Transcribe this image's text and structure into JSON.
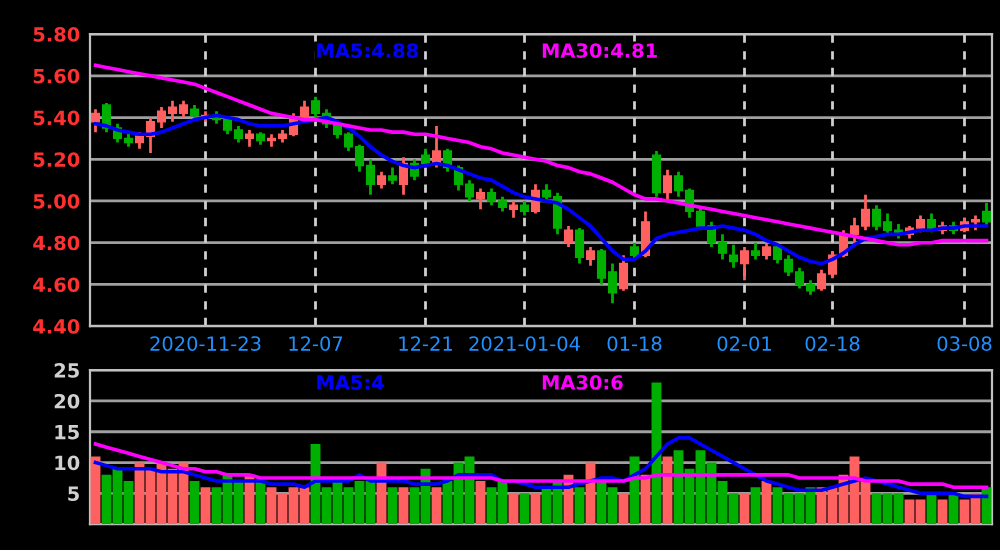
{
  "chart_data": [
    {
      "type": "candlestick",
      "categories": [
        null,
        null,
        null,
        null,
        null,
        null,
        null,
        null,
        null,
        null,
        "2020-11-23",
        null,
        null,
        null,
        null,
        null,
        null,
        null,
        null,
        null,
        "12-07",
        null,
        null,
        null,
        null,
        null,
        null,
        null,
        null,
        null,
        "12-21",
        null,
        null,
        null,
        null,
        null,
        null,
        null,
        null,
        "2021-01-04",
        null,
        null,
        null,
        null,
        null,
        null,
        null,
        null,
        null,
        "01-18",
        null,
        null,
        null,
        null,
        null,
        null,
        null,
        null,
        null,
        "02-01",
        null,
        null,
        null,
        null,
        null,
        null,
        null,
        "02-18",
        null,
        null,
        null,
        null,
        null,
        null,
        null,
        null,
        null,
        null,
        null,
        "03-08",
        null,
        null
      ],
      "ohlc": [
        [
          5.38,
          5.44,
          5.33,
          5.42
        ],
        [
          5.46,
          5.47,
          5.33,
          5.35
        ],
        [
          5.35,
          5.37,
          5.28,
          5.3
        ],
        [
          5.3,
          5.33,
          5.26,
          5.28
        ],
        [
          5.28,
          5.33,
          5.25,
          5.31
        ],
        [
          5.31,
          5.4,
          5.23,
          5.38
        ],
        [
          5.38,
          5.45,
          5.35,
          5.43
        ],
        [
          5.42,
          5.48,
          5.38,
          5.45
        ],
        [
          5.42,
          5.48,
          5.4,
          5.46
        ],
        [
          5.44,
          5.46,
          5.4,
          5.41
        ],
        [
          5.4,
          5.43,
          5.38,
          5.41
        ],
        [
          5.41,
          5.43,
          5.37,
          5.39
        ],
        [
          5.39,
          5.4,
          5.32,
          5.34
        ],
        [
          5.34,
          5.36,
          5.28,
          5.3
        ],
        [
          5.3,
          5.34,
          5.26,
          5.32
        ],
        [
          5.32,
          5.33,
          5.27,
          5.29
        ],
        [
          5.29,
          5.32,
          5.26,
          5.3
        ],
        [
          5.3,
          5.34,
          5.28,
          5.32
        ],
        [
          5.32,
          5.42,
          5.31,
          5.4
        ],
        [
          5.4,
          5.48,
          5.38,
          5.45
        ],
        [
          5.48,
          5.5,
          5.4,
          5.42
        ],
        [
          5.42,
          5.44,
          5.35,
          5.37
        ],
        [
          5.37,
          5.38,
          5.3,
          5.32
        ],
        [
          5.32,
          5.33,
          5.24,
          5.26
        ],
        [
          5.26,
          5.27,
          5.14,
          5.17
        ],
        [
          5.17,
          5.2,
          5.03,
          5.08
        ],
        [
          5.08,
          5.14,
          5.06,
          5.12
        ],
        [
          5.12,
          5.16,
          5.08,
          5.1
        ],
        [
          5.08,
          5.21,
          5.03,
          5.18
        ],
        [
          5.18,
          5.2,
          5.1,
          5.12
        ],
        [
          5.22,
          5.25,
          5.16,
          5.18
        ],
        [
          5.18,
          5.36,
          5.16,
          5.24
        ],
        [
          5.24,
          5.25,
          5.14,
          5.16
        ],
        [
          5.16,
          5.17,
          5.05,
          5.08
        ],
        [
          5.08,
          5.1,
          5.0,
          5.02
        ],
        [
          5.01,
          5.06,
          4.96,
          5.04
        ],
        [
          5.04,
          5.06,
          4.98,
          5.0
        ],
        [
          5.0,
          5.02,
          4.95,
          4.97
        ],
        [
          4.96,
          5.0,
          4.92,
          4.98
        ],
        [
          4.98,
          5.0,
          4.93,
          4.95
        ],
        [
          4.95,
          5.08,
          4.94,
          5.05
        ],
        [
          5.05,
          5.08,
          5.0,
          5.02
        ],
        [
          5.02,
          5.04,
          4.84,
          4.87
        ],
        [
          4.8,
          4.88,
          4.78,
          4.86
        ],
        [
          4.86,
          4.87,
          4.7,
          4.73
        ],
        [
          4.72,
          4.78,
          4.69,
          4.76
        ],
        [
          4.76,
          4.77,
          4.6,
          4.63
        ],
        [
          4.66,
          4.7,
          4.51,
          4.56
        ],
        [
          4.58,
          4.74,
          4.57,
          4.7
        ],
        [
          4.78,
          4.8,
          4.72,
          4.74
        ],
        [
          4.74,
          4.95,
          4.73,
          4.9
        ],
        [
          5.22,
          5.24,
          5.02,
          5.04
        ],
        [
          5.04,
          5.15,
          5.0,
          5.12
        ],
        [
          5.12,
          5.14,
          5.02,
          5.05
        ],
        [
          5.05,
          5.06,
          4.92,
          4.95
        ],
        [
          4.95,
          4.97,
          4.86,
          4.88
        ],
        [
          4.88,
          4.9,
          4.78,
          4.8
        ],
        [
          4.8,
          4.84,
          4.72,
          4.75
        ],
        [
          4.74,
          4.79,
          4.68,
          4.71
        ],
        [
          4.7,
          4.78,
          4.62,
          4.76
        ],
        [
          4.76,
          4.8,
          4.72,
          4.74
        ],
        [
          4.74,
          4.8,
          4.72,
          4.78
        ],
        [
          4.78,
          4.79,
          4.7,
          4.72
        ],
        [
          4.72,
          4.74,
          4.64,
          4.66
        ],
        [
          4.66,
          4.68,
          4.58,
          4.6
        ],
        [
          4.6,
          4.62,
          4.55,
          4.57
        ],
        [
          4.58,
          4.67,
          4.57,
          4.65
        ],
        [
          4.65,
          4.76,
          4.63,
          4.74
        ],
        [
          4.74,
          4.86,
          4.73,
          4.84
        ],
        [
          4.84,
          4.92,
          4.8,
          4.88
        ],
        [
          4.88,
          5.03,
          4.86,
          4.96
        ],
        [
          4.96,
          4.98,
          4.86,
          4.88
        ],
        [
          4.9,
          4.94,
          4.84,
          4.86
        ],
        [
          4.86,
          4.89,
          4.82,
          4.84
        ],
        [
          4.84,
          4.88,
          4.82,
          4.87
        ],
        [
          4.87,
          4.93,
          4.85,
          4.91
        ],
        [
          4.91,
          4.94,
          4.85,
          4.86
        ],
        [
          4.86,
          4.9,
          4.84,
          4.88
        ],
        [
          4.88,
          4.9,
          4.84,
          4.86
        ],
        [
          4.86,
          4.92,
          4.85,
          4.9
        ],
        [
          4.9,
          4.93,
          4.86,
          4.91
        ],
        [
          4.95,
          4.99,
          4.88,
          4.9
        ]
      ],
      "series": [
        {
          "name": "MA5:4.88",
          "type": "line",
          "color": "#0000ff",
          "values": [
            5.37,
            5.36,
            5.34,
            5.33,
            5.32,
            5.32,
            5.33,
            5.35,
            5.37,
            5.39,
            5.4,
            5.41,
            5.4,
            5.39,
            5.37,
            5.36,
            5.36,
            5.36,
            5.37,
            5.38,
            5.39,
            5.4,
            5.38,
            5.35,
            5.31,
            5.26,
            5.22,
            5.19,
            5.17,
            5.16,
            5.17,
            5.18,
            5.17,
            5.15,
            5.13,
            5.11,
            5.1,
            5.07,
            5.04,
            5.02,
            5.01,
            5.0,
            4.99,
            4.96,
            4.92,
            4.88,
            4.82,
            4.76,
            4.72,
            4.72,
            4.76,
            4.82,
            4.84,
            4.85,
            4.86,
            4.87,
            4.87,
            4.88,
            4.87,
            4.86,
            4.84,
            4.81,
            4.79,
            4.76,
            4.73,
            4.71,
            4.7,
            4.72,
            4.75,
            4.79,
            4.82,
            4.83,
            4.84,
            4.84,
            4.85,
            4.86,
            4.86,
            4.87,
            4.87,
            4.88,
            4.88,
            4.88
          ]
        },
        {
          "name": "MA30:4.81",
          "type": "line",
          "color": "#ff00ff",
          "values": [
            5.65,
            5.64,
            5.63,
            5.62,
            5.61,
            5.6,
            5.59,
            5.58,
            5.57,
            5.56,
            5.54,
            5.52,
            5.5,
            5.48,
            5.46,
            5.44,
            5.42,
            5.41,
            5.4,
            5.39,
            5.39,
            5.38,
            5.37,
            5.36,
            5.35,
            5.34,
            5.34,
            5.33,
            5.33,
            5.32,
            5.32,
            5.31,
            5.3,
            5.29,
            5.28,
            5.26,
            5.25,
            5.23,
            5.22,
            5.21,
            5.2,
            5.19,
            5.17,
            5.16,
            5.14,
            5.13,
            5.11,
            5.09,
            5.06,
            5.03,
            5.01,
            5.01,
            5.0,
            4.99,
            4.98,
            4.97,
            4.96,
            4.95,
            4.94,
            4.93,
            4.92,
            4.91,
            4.9,
            4.89,
            4.88,
            4.87,
            4.86,
            4.85,
            4.84,
            4.83,
            4.82,
            4.81,
            4.8,
            4.79,
            4.79,
            4.8,
            4.8,
            4.81,
            4.81,
            4.81,
            4.81,
            4.81
          ]
        }
      ],
      "ylim": [
        4.4,
        5.8
      ],
      "yticks": [
        {
          "value": 4.4,
          "label": "4.40"
        },
        {
          "value": 4.6,
          "label": "4.60"
        },
        {
          "value": 4.8,
          "label": "4.80"
        },
        {
          "value": 5.0,
          "label": "5.00"
        },
        {
          "value": 5.2,
          "label": "5.20"
        },
        {
          "value": 5.4,
          "label": "5.40"
        },
        {
          "value": 5.6,
          "label": "5.60"
        },
        {
          "value": 5.8,
          "label": "5.80"
        }
      ],
      "grid": true,
      "legend": "top"
    },
    {
      "type": "bar",
      "categories": [
        null,
        null,
        null,
        null,
        null,
        null,
        null,
        null,
        null,
        null,
        null,
        null,
        null,
        null,
        null,
        null,
        null,
        null,
        null,
        null,
        null,
        null,
        null,
        null,
        null,
        null,
        null,
        null,
        null,
        null,
        null,
        null,
        null,
        null,
        null,
        null,
        null,
        null,
        null,
        null,
        null,
        null,
        null,
        null,
        null,
        null,
        null,
        null,
        null,
        null,
        null,
        null,
        null,
        null,
        null,
        null,
        null,
        null,
        null,
        null,
        null,
        null,
        null,
        null,
        null,
        null,
        null,
        null,
        null,
        null,
        null,
        null,
        null,
        null,
        null,
        null,
        null,
        null,
        null,
        null,
        null,
        null
      ],
      "series": [
        {
          "type": "bar",
          "values": [
            11,
            8,
            9,
            7,
            10,
            9,
            10,
            9,
            10,
            7,
            6,
            6,
            8,
            7,
            8,
            7,
            6,
            5,
            6,
            6,
            13,
            6,
            7,
            6,
            7,
            7,
            10,
            6,
            6,
            6,
            9,
            6,
            7,
            10,
            11,
            7,
            6,
            7,
            5,
            5,
            5,
            6,
            7,
            8,
            6,
            10,
            7,
            6,
            5,
            11,
            8,
            23,
            11,
            12,
            9,
            12,
            10,
            7,
            5,
            5,
            6,
            7,
            6,
            5,
            5,
            6,
            6,
            6,
            8,
            11,
            7,
            5,
            5,
            5,
            4,
            4,
            5,
            4,
            5,
            4,
            5,
            6
          ],
          "colors": [
            "#ff6060",
            "#00b000",
            "#00b000",
            "#00b000",
            "#ff6060",
            "#ff6060",
            "#ff6060",
            "#ff6060",
            "#ff6060",
            "#00b000",
            "#ff6060",
            "#00b000",
            "#00b000",
            "#00b000",
            "#ff6060",
            "#00b000",
            "#ff6060",
            "#ff6060",
            "#ff6060",
            "#ff6060",
            "#00b000",
            "#00b000",
            "#00b000",
            "#00b000",
            "#00b000",
            "#00b000",
            "#ff6060",
            "#00b000",
            "#ff6060",
            "#00b000",
            "#00b000",
            "#ff6060",
            "#00b000",
            "#00b000",
            "#00b000",
            "#ff6060",
            "#00b000",
            "#00b000",
            "#ff6060",
            "#00b000",
            "#ff6060",
            "#00b000",
            "#00b000",
            "#ff6060",
            "#00b000",
            "#ff6060",
            "#00b000",
            "#00b000",
            "#ff6060",
            "#00b000",
            "#ff6060",
            "#00b000",
            "#ff6060",
            "#00b000",
            "#00b000",
            "#00b000",
            "#00b000",
            "#00b000",
            "#00b000",
            "#ff6060",
            "#00b000",
            "#ff6060",
            "#00b000",
            "#00b000",
            "#00b000",
            "#00b000",
            "#ff6060",
            "#ff6060",
            "#ff6060",
            "#ff6060",
            "#ff6060",
            "#00b000",
            "#00b000",
            "#00b000",
            "#ff6060",
            "#ff6060",
            "#00b000",
            "#ff6060",
            "#00b000",
            "#ff6060",
            "#ff6060",
            "#00b000"
          ]
        },
        {
          "name": "MA5:4",
          "type": "line",
          "color": "#0000ff",
          "values": [
            10,
            9.5,
            9,
            9,
            9,
            9,
            8.5,
            8.5,
            8.5,
            8,
            7.5,
            7,
            7,
            7,
            7,
            7,
            6.5,
            6.5,
            6.5,
            6,
            7,
            7,
            7,
            7,
            8,
            7,
            7,
            7,
            7,
            6.5,
            6.5,
            6.5,
            7,
            8,
            8,
            8,
            8,
            7,
            7,
            6.5,
            6,
            6,
            6,
            6,
            6.5,
            7,
            7.5,
            7.5,
            7,
            8,
            9,
            11,
            13,
            14,
            14,
            13,
            12,
            11,
            10,
            9,
            8,
            7,
            6.5,
            6,
            5.5,
            5.5,
            5.5,
            6,
            6.5,
            7,
            7.5,
            7,
            6.5,
            6,
            5.5,
            5,
            5,
            5,
            5,
            4.5,
            4.5,
            4.5
          ]
        },
        {
          "name": "MA30:6",
          "type": "line",
          "color": "#ff00ff",
          "values": [
            13,
            12.5,
            12,
            11.5,
            11,
            10.5,
            10,
            9.5,
            9,
            9,
            8.5,
            8.5,
            8,
            8,
            8,
            7.5,
            7.5,
            7.5,
            7.5,
            7.5,
            7.5,
            7.5,
            7.5,
            7.5,
            7.5,
            7.5,
            7.5,
            7.5,
            7.5,
            7.5,
            7.5,
            7.5,
            7.5,
            7.5,
            7.5,
            7.5,
            7.5,
            7,
            7,
            7,
            7,
            7,
            7,
            7,
            7,
            7,
            7,
            7,
            7,
            7.5,
            7.5,
            8,
            8,
            8,
            8,
            8,
            8,
            8,
            8,
            8,
            8,
            8,
            8,
            8,
            7.5,
            7.5,
            7.5,
            7.5,
            7.5,
            7.5,
            7,
            7,
            7,
            7,
            6.5,
            6.5,
            6.5,
            6.5,
            6,
            6,
            6,
            6
          ]
        }
      ],
      "ylim": [
        0,
        25
      ],
      "yticks": [
        5,
        10,
        15,
        20,
        25
      ],
      "grid": true,
      "legend": "top",
      "tick_labels": "y"
    }
  ]
}
